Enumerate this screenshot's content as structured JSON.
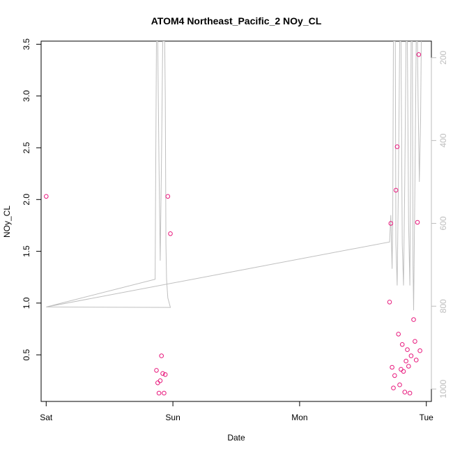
{
  "chart_data": {
    "type": "scatter",
    "title": "ATOM4 Northeast_Pacific_2 NOy_CL",
    "xlabel": "Date",
    "ylabel": "NOy_CL",
    "x_ticks": [
      "Sat",
      "Sun",
      "Mon",
      "Tue"
    ],
    "xlim": [
      -0.04,
      3.04
    ],
    "ylim": [
      0.05,
      3.53
    ],
    "y_ticks": [
      "0.5",
      "1.0",
      "1.5",
      "2.0",
      "2.5",
      "3.0",
      "3.5"
    ],
    "y2_ticks": [
      "200",
      "400",
      "600",
      "800",
      "1000"
    ],
    "y2lim": [
      1030,
      160
    ],
    "grid": false,
    "series": [
      {
        "color": "#e8187c",
        "marker": "circle",
        "points": [
          [
            0.0,
            2.03
          ],
          [
            0.87,
            0.35
          ],
          [
            0.88,
            0.23
          ],
          [
            0.89,
            0.13
          ],
          [
            0.9,
            0.25
          ],
          [
            0.91,
            0.49
          ],
          [
            0.92,
            0.32
          ],
          [
            0.93,
            0.13
          ],
          [
            0.94,
            0.31
          ],
          [
            0.96,
            2.03
          ],
          [
            0.98,
            1.67
          ],
          [
            2.71,
            1.01
          ],
          [
            2.72,
            1.77
          ],
          [
            2.73,
            0.38
          ],
          [
            2.74,
            0.18
          ],
          [
            2.75,
            0.3
          ],
          [
            2.76,
            2.09
          ],
          [
            2.77,
            2.51
          ],
          [
            2.78,
            0.7
          ],
          [
            2.79,
            0.21
          ],
          [
            2.8,
            0.36
          ],
          [
            2.81,
            0.6
          ],
          [
            2.82,
            0.34
          ],
          [
            2.83,
            0.14
          ],
          [
            2.84,
            0.44
          ],
          [
            2.85,
            0.55
          ],
          [
            2.86,
            0.39
          ],
          [
            2.87,
            0.13
          ],
          [
            2.88,
            0.49
          ],
          [
            2.9,
            0.84
          ],
          [
            2.91,
            0.63
          ],
          [
            2.92,
            0.45
          ],
          [
            2.93,
            1.78
          ],
          [
            2.94,
            3.4
          ],
          [
            2.95,
            0.54
          ]
        ]
      },
      {
        "color": "#bfbfbf",
        "marker": "line",
        "axis": "right",
        "points": [
          [
            0.0,
            802
          ],
          [
            0.98,
            803
          ],
          [
            0.96,
            780
          ],
          [
            0.95,
            735
          ],
          [
            0.945,
            650
          ],
          [
            0.94,
            300
          ],
          [
            0.935,
            160
          ],
          [
            0.92,
            160
          ],
          [
            0.91,
            450
          ],
          [
            0.9,
            690
          ],
          [
            0.89,
            450
          ],
          [
            0.88,
            160
          ],
          [
            0.87,
            160
          ],
          [
            0.865,
            450
          ],
          [
            0.86,
            735
          ],
          [
            0.0,
            802
          ],
          [
            2.71,
            645
          ],
          [
            2.72,
            580
          ],
          [
            2.73,
            710
          ],
          [
            2.735,
            600
          ],
          [
            2.74,
            160
          ],
          [
            2.755,
            160
          ],
          [
            2.76,
            650
          ],
          [
            2.77,
            750
          ],
          [
            2.78,
            500
          ],
          [
            2.79,
            160
          ],
          [
            2.8,
            160
          ],
          [
            2.81,
            650
          ],
          [
            2.82,
            750
          ],
          [
            2.83,
            500
          ],
          [
            2.84,
            160
          ],
          [
            2.85,
            160
          ],
          [
            2.86,
            600
          ],
          [
            2.87,
            750
          ],
          [
            2.875,
            500
          ],
          [
            2.88,
            160
          ],
          [
            2.89,
            160
          ],
          [
            2.895,
            700
          ],
          [
            2.9,
            810
          ],
          [
            2.91,
            500
          ],
          [
            2.92,
            160
          ],
          [
            2.93,
            160
          ],
          [
            2.935,
            300
          ],
          [
            2.94,
            400
          ],
          [
            2.945,
            500
          ],
          [
            2.955,
            350
          ],
          [
            2.96,
            160
          ]
        ]
      }
    ]
  }
}
